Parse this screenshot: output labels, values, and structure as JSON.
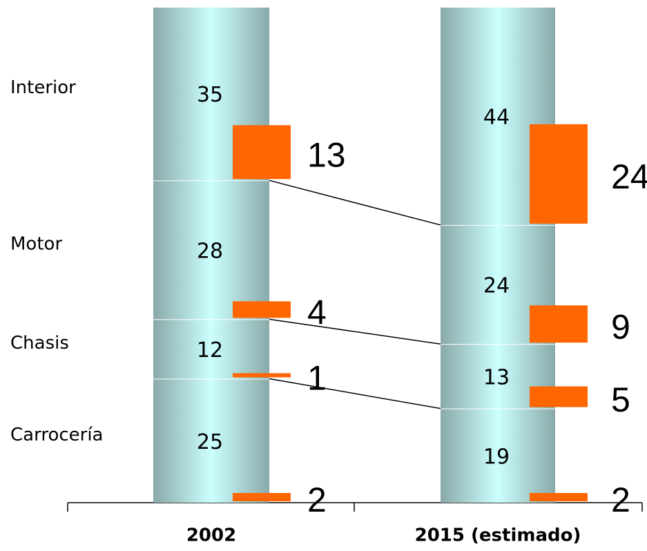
{
  "chart_data": {
    "type": "bar",
    "stacked": true,
    "categories": [
      "2002",
      "2015 (estimado)"
    ],
    "series": [
      {
        "name": "Interior",
        "values": [
          35,
          44
        ],
        "sub_values": [
          13,
          24
        ]
      },
      {
        "name": "Motor",
        "values": [
          28,
          24
        ],
        "sub_values": [
          4,
          9
        ]
      },
      {
        "name": "Chasis",
        "values": [
          12,
          13
        ],
        "sub_values": [
          1,
          5
        ]
      },
      {
        "name": "Carrocería",
        "values": [
          25,
          19
        ],
        "sub_values": [
          2,
          2
        ]
      }
    ],
    "color": "#ccffff",
    "sub_color": "#ff6600",
    "ylim": [
      0,
      100
    ]
  }
}
